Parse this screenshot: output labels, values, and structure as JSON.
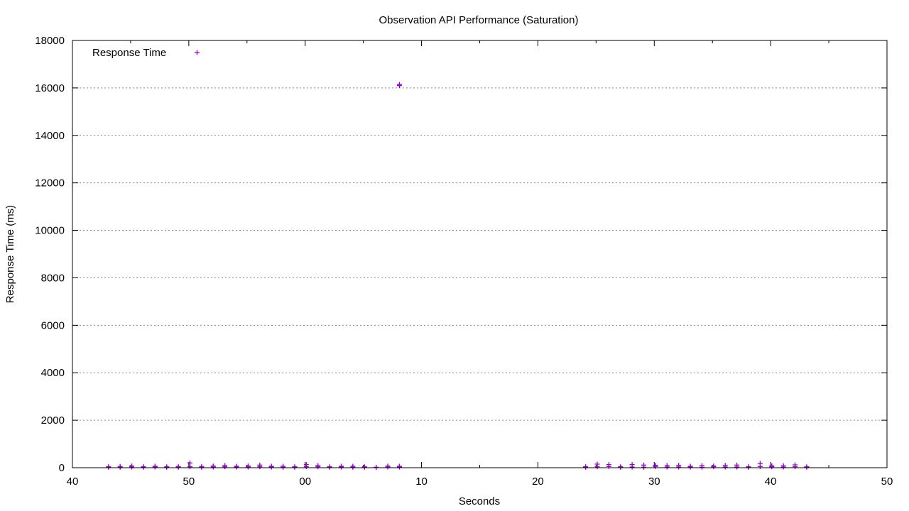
{
  "chart_data": {
    "type": "scatter",
    "title": "Observation API Performance (Saturation)",
    "xlabel": "Seconds",
    "ylabel": "Response Time (ms)",
    "xlim": [
      40,
      50
    ],
    "ylim": [
      0,
      18000
    ],
    "x_ticks": [
      {
        "pos": 40,
        "label": "40"
      },
      {
        "pos": 41,
        "label": "50"
      },
      {
        "pos": 42,
        "label": "00"
      },
      {
        "pos": 43,
        "label": "10"
      },
      {
        "pos": 44,
        "label": "20"
      },
      {
        "pos": 45,
        "label": "30"
      },
      {
        "pos": 46,
        "label": "40"
      },
      {
        "pos": 47,
        "label": "50"
      }
    ],
    "y_ticks": [
      0,
      2000,
      4000,
      6000,
      8000,
      10000,
      12000,
      14000,
      16000,
      18000
    ],
    "grid": "horizontal dotted",
    "legend": {
      "position": "top-left",
      "label": "Response Time"
    },
    "series": [
      {
        "name": "Response Time",
        "color": "#9400d3",
        "marker": "plus",
        "points": [
          [
            40.31,
            20
          ],
          [
            40.31,
            40
          ],
          [
            40.41,
            20
          ],
          [
            40.41,
            50
          ],
          [
            40.51,
            30
          ],
          [
            40.51,
            70
          ],
          [
            40.61,
            20
          ],
          [
            40.61,
            40
          ],
          [
            40.71,
            30
          ],
          [
            40.71,
            60
          ],
          [
            40.81,
            20
          ],
          [
            40.81,
            40
          ],
          [
            40.91,
            20
          ],
          [
            40.91,
            50
          ],
          [
            41.01,
            40
          ],
          [
            41.01,
            200
          ],
          [
            41.11,
            20
          ],
          [
            41.11,
            50
          ],
          [
            41.21,
            30
          ],
          [
            41.21,
            70
          ],
          [
            41.31,
            40
          ],
          [
            41.31,
            90
          ],
          [
            41.41,
            30
          ],
          [
            41.41,
            60
          ],
          [
            41.51,
            30
          ],
          [
            41.51,
            70
          ],
          [
            41.61,
            40
          ],
          [
            41.61,
            110
          ],
          [
            41.71,
            30
          ],
          [
            41.71,
            60
          ],
          [
            41.81,
            20
          ],
          [
            41.81,
            60
          ],
          [
            41.91,
            20
          ],
          [
            41.91,
            40
          ],
          [
            42.01,
            40
          ],
          [
            42.01,
            130
          ],
          [
            42.11,
            40
          ],
          [
            42.11,
            90
          ],
          [
            42.21,
            20
          ],
          [
            42.21,
            40
          ],
          [
            42.31,
            30
          ],
          [
            42.31,
            60
          ],
          [
            42.41,
            20
          ],
          [
            42.41,
            60
          ],
          [
            42.51,
            20
          ],
          [
            42.51,
            40
          ],
          [
            42.61,
            10
          ],
          [
            42.61,
            20
          ],
          [
            42.71,
            30
          ],
          [
            42.71,
            70
          ],
          [
            42.81,
            30
          ],
          [
            42.81,
            60
          ],
          [
            42.81,
            16100
          ],
          [
            42.81,
            16150
          ],
          [
            44.41,
            20
          ],
          [
            44.41,
            40
          ],
          [
            44.51,
            40
          ],
          [
            44.51,
            150
          ],
          [
            44.61,
            50
          ],
          [
            44.61,
            130
          ],
          [
            44.71,
            20
          ],
          [
            44.71,
            40
          ],
          [
            44.81,
            30
          ],
          [
            44.81,
            130
          ],
          [
            44.91,
            20
          ],
          [
            44.91,
            110
          ],
          [
            45.01,
            50
          ],
          [
            45.01,
            100
          ],
          [
            45.11,
            30
          ],
          [
            45.11,
            90
          ],
          [
            45.21,
            30
          ],
          [
            45.21,
            100
          ],
          [
            45.31,
            30
          ],
          [
            45.31,
            60
          ],
          [
            45.41,
            20
          ],
          [
            45.41,
            90
          ],
          [
            45.51,
            40
          ],
          [
            45.51,
            70
          ],
          [
            45.61,
            30
          ],
          [
            45.61,
            100
          ],
          [
            45.71,
            30
          ],
          [
            45.71,
            110
          ],
          [
            45.81,
            20
          ],
          [
            45.81,
            40
          ],
          [
            45.91,
            50
          ],
          [
            45.91,
            180
          ],
          [
            46.01,
            40
          ],
          [
            46.01,
            80
          ],
          [
            46.11,
            30
          ],
          [
            46.11,
            80
          ],
          [
            46.21,
            40
          ],
          [
            46.21,
            120
          ],
          [
            46.31,
            20
          ],
          [
            46.31,
            40
          ]
        ]
      }
    ]
  }
}
